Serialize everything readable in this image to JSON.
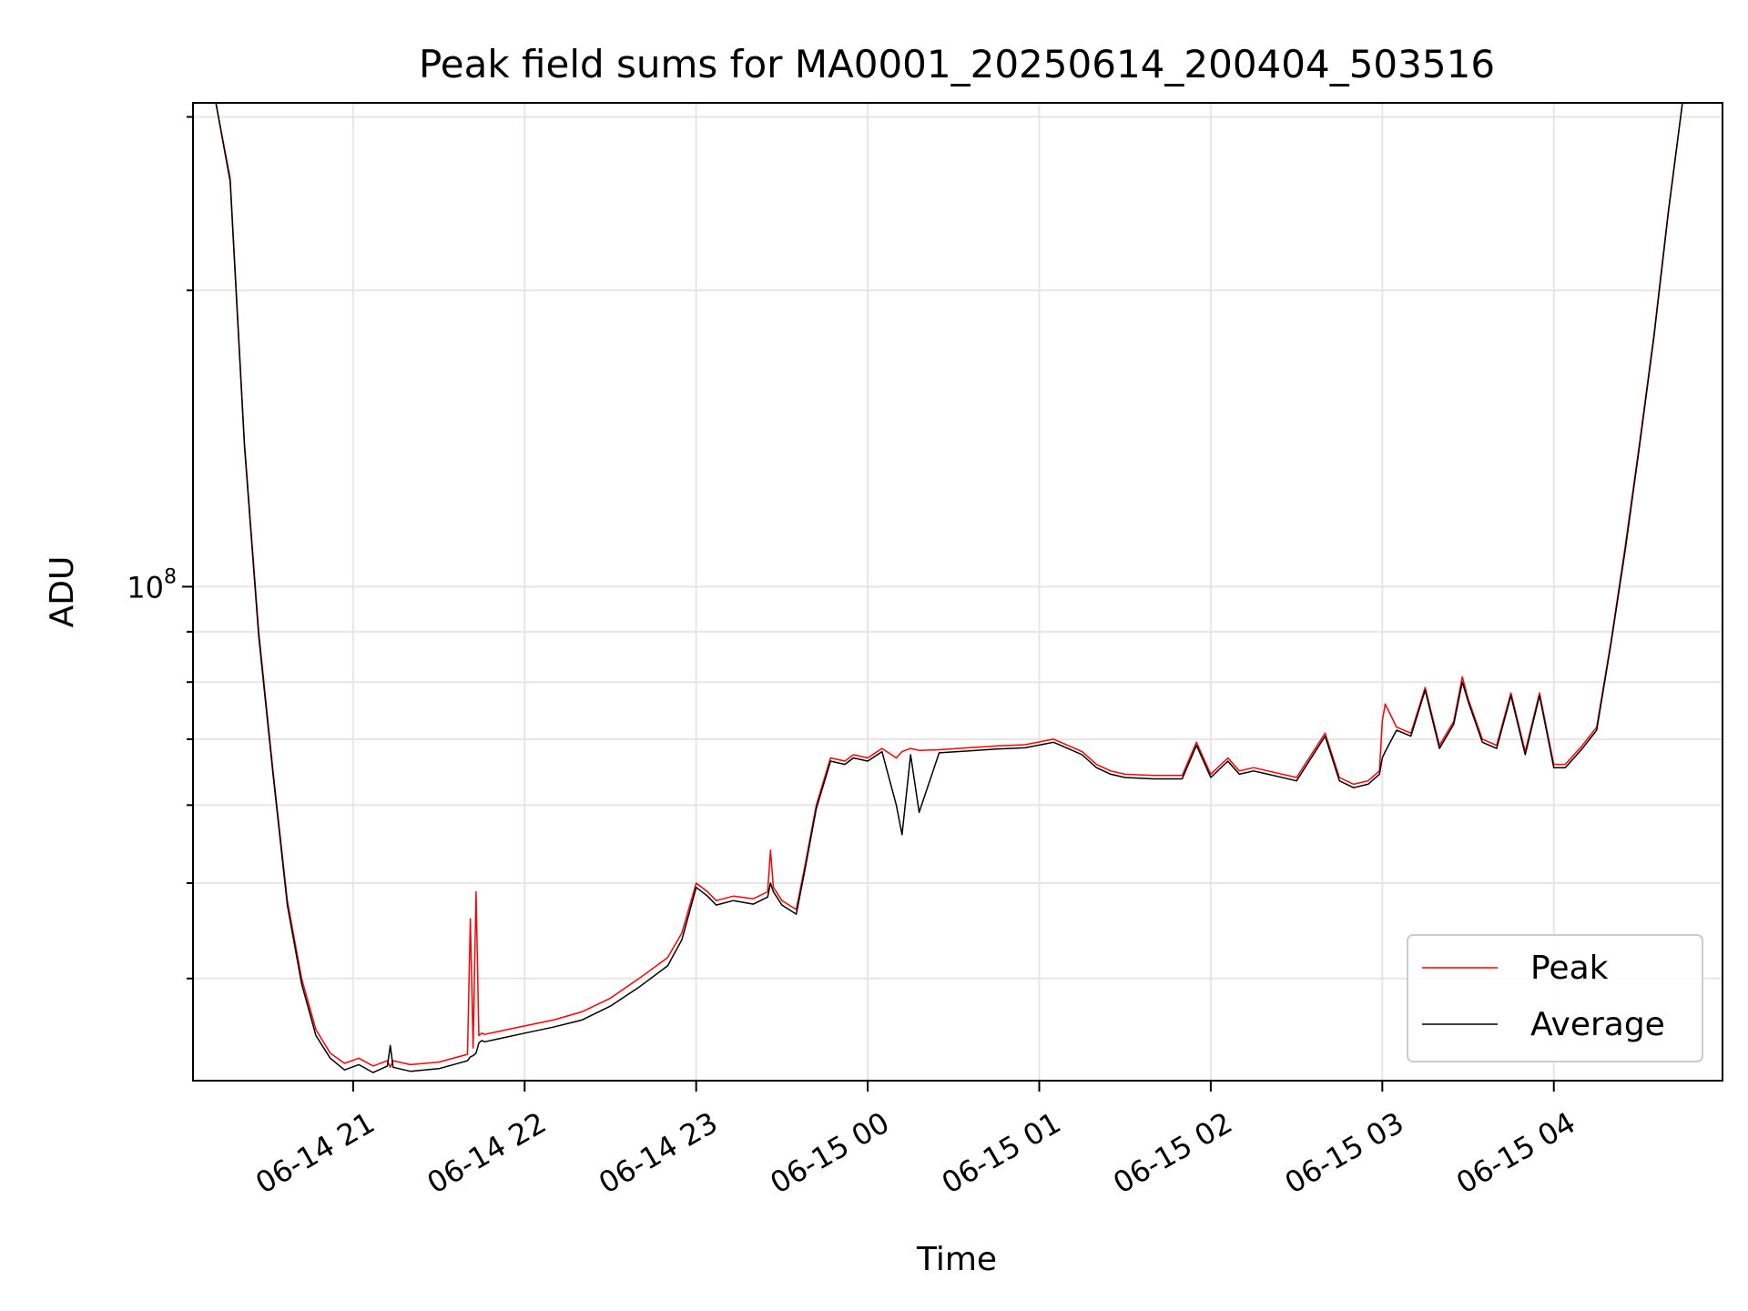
{
  "chart_data": {
    "type": "line",
    "title": "Peak field sums for MA0001_20250614_200404_503516",
    "xlabel": "Time",
    "ylabel": "ADU",
    "yscale": "log",
    "grid": true,
    "legend_position": "lower-right",
    "x_unit": "hours",
    "xlim": [
      "06-14 20:04",
      "06-15 04:59"
    ],
    "ylim": [
      31500000,
      310000000
    ],
    "x_ticks": [
      {
        "label": "06-14 21",
        "value": "06-14 21:00"
      },
      {
        "label": "06-14 22",
        "value": "06-14 22:00"
      },
      {
        "label": "06-14 23",
        "value": "06-14 23:00"
      },
      {
        "label": "06-15 00",
        "value": "06-15 00:00"
      },
      {
        "label": "06-15 01",
        "value": "06-15 01:00"
      },
      {
        "label": "06-15 02",
        "value": "06-15 02:00"
      },
      {
        "label": "06-15 03",
        "value": "06-15 03:00"
      },
      {
        "label": "06-15 04",
        "value": "06-15 04:00"
      }
    ],
    "y_major_ticks": [
      {
        "label": "10",
        "exp": "8",
        "value": 100000000
      }
    ],
    "y_minor_ticks": [
      40000000,
      50000000,
      60000000,
      70000000,
      80000000,
      90000000,
      200000000,
      300000000
    ],
    "series": [
      {
        "name": "Peak",
        "color": "#ff0000",
        "x": [
          "06-14 20:04",
          "06-14 20:12",
          "06-14 20:17",
          "06-14 20:22",
          "06-14 20:27",
          "06-14 20:32",
          "06-14 20:37",
          "06-14 20:42",
          "06-14 20:47",
          "06-14 20:52",
          "06-14 20:57",
          "06-14 21:02",
          "06-14 21:07",
          "06-14 21:12",
          "06-14 21:13",
          "06-14 21:14",
          "06-14 21:20",
          "06-14 21:30",
          "06-14 21:40",
          "06-14 21:41",
          "06-14 21:42",
          "06-14 21:43",
          "06-14 21:44",
          "06-14 21:45",
          "06-14 21:46",
          "06-14 21:50",
          "06-14 22:00",
          "06-14 22:10",
          "06-14 22:20",
          "06-14 22:30",
          "06-14 22:40",
          "06-14 22:50",
          "06-14 22:55",
          "06-14 23:00",
          "06-14 23:04",
          "06-14 23:07",
          "06-14 23:13",
          "06-14 23:20",
          "06-14 23:25",
          "06-14 23:26",
          "06-14 23:27",
          "06-14 23:30",
          "06-14 23:35",
          "06-14 23:38",
          "06-14 23:42",
          "06-14 23:47",
          "06-14 23:52",
          "06-14 23:55",
          "06-15 00:00",
          "06-15 00:05",
          "06-15 00:10",
          "06-15 00:12",
          "06-15 00:15",
          "06-15 00:18",
          "06-15 00:25",
          "06-15 00:35",
          "06-15 00:45",
          "06-15 00:55",
          "06-15 01:05",
          "06-15 01:10",
          "06-15 01:15",
          "06-15 01:20",
          "06-15 01:25",
          "06-15 01:30",
          "06-15 01:40",
          "06-15 01:50",
          "06-15 01:55",
          "06-15 02:00",
          "06-15 02:06",
          "06-15 02:10",
          "06-15 02:15",
          "06-15 02:20",
          "06-15 02:30",
          "06-15 02:40",
          "06-15 02:45",
          "06-15 02:50",
          "06-15 02:55",
          "06-15 02:59",
          "06-15 03:00",
          "06-15 03:01",
          "06-15 03:05",
          "06-15 03:10",
          "06-15 03:15",
          "06-15 03:20",
          "06-15 03:25",
          "06-15 03:28",
          "06-15 03:30",
          "06-15 03:35",
          "06-15 03:40",
          "06-15 03:45",
          "06-15 03:50",
          "06-15 03:55",
          "06-15 04:00",
          "06-15 04:04",
          "06-15 04:10",
          "06-15 04:15",
          "06-15 04:20",
          "06-15 04:25",
          "06-15 04:30",
          "06-15 04:35",
          "06-15 04:40",
          "06-15 04:45",
          "06-15 04:50",
          "06-15 04:52",
          "06-15 04:59"
        ],
        "y": [
          310000000,
          310000000,
          260000000,
          140000000,
          90000000,
          65000000,
          48000000,
          40000000,
          35500000,
          33600000,
          32800000,
          33200000,
          32600000,
          33000000,
          32500000,
          33000000,
          32700000,
          32900000,
          33500000,
          46000000,
          34000000,
          49000000,
          35000000,
          35200000,
          35100000,
          35300000,
          35800000,
          36300000,
          37000000,
          38200000,
          40000000,
          42000000,
          44500000,
          50000000,
          49000000,
          48000000,
          48500000,
          48200000,
          49000000,
          54000000,
          49500000,
          48000000,
          47000000,
          52000000,
          60000000,
          67000000,
          66500000,
          67500000,
          67000000,
          68500000,
          67000000,
          68000000,
          68500000,
          68200000,
          68300000,
          68600000,
          68900000,
          69100000,
          70000000,
          69000000,
          68000000,
          66000000,
          65000000,
          64500000,
          64300000,
          64300000,
          69500000,
          64500000,
          67000000,
          65000000,
          65500000,
          65000000,
          64000000,
          71000000,
          64000000,
          63000000,
          63500000,
          65000000,
          73000000,
          76000000,
          72000000,
          71000000,
          79000000,
          69000000,
          73000000,
          81000000,
          77000000,
          70000000,
          69000000,
          78000000,
          68000000,
          78000000,
          66000000,
          66000000,
          69000000,
          72000000,
          88000000,
          110000000,
          140000000,
          180000000,
          240000000,
          310000000,
          310000000,
          310000000,
          310000000
        ]
      },
      {
        "name": "Average",
        "color": "#000000",
        "x": [
          "06-14 20:04",
          "06-14 20:12",
          "06-14 20:17",
          "06-14 20:22",
          "06-14 20:27",
          "06-14 20:32",
          "06-14 20:37",
          "06-14 20:42",
          "06-14 20:47",
          "06-14 20:52",
          "06-14 20:57",
          "06-14 21:02",
          "06-14 21:07",
          "06-14 21:12",
          "06-14 21:13",
          "06-14 21:14",
          "06-14 21:20",
          "06-14 21:30",
          "06-14 21:40",
          "06-14 21:41",
          "06-14 21:42",
          "06-14 21:43",
          "06-14 21:44",
          "06-14 21:45",
          "06-14 21:46",
          "06-14 21:50",
          "06-14 22:00",
          "06-14 22:10",
          "06-14 22:20",
          "06-14 22:30",
          "06-14 22:40",
          "06-14 22:50",
          "06-14 22:55",
          "06-14 23:00",
          "06-14 23:04",
          "06-14 23:07",
          "06-14 23:13",
          "06-14 23:20",
          "06-14 23:25",
          "06-14 23:26",
          "06-14 23:27",
          "06-14 23:30",
          "06-14 23:35",
          "06-14 23:38",
          "06-14 23:42",
          "06-14 23:47",
          "06-14 23:52",
          "06-14 23:55",
          "06-15 00:00",
          "06-15 00:05",
          "06-15 00:10",
          "06-15 00:12",
          "06-15 00:15",
          "06-15 00:18",
          "06-15 00:25",
          "06-15 00:35",
          "06-15 00:45",
          "06-15 00:55",
          "06-15 01:05",
          "06-15 01:10",
          "06-15 01:15",
          "06-15 01:20",
          "06-15 01:25",
          "06-15 01:30",
          "06-15 01:40",
          "06-15 01:50",
          "06-15 01:55",
          "06-15 02:00",
          "06-15 02:06",
          "06-15 02:10",
          "06-15 02:15",
          "06-15 02:20",
          "06-15 02:30",
          "06-15 02:40",
          "06-15 02:45",
          "06-15 02:50",
          "06-15 02:55",
          "06-15 02:59",
          "06-15 03:00",
          "06-15 03:01",
          "06-15 03:05",
          "06-15 03:10",
          "06-15 03:15",
          "06-15 03:20",
          "06-15 03:25",
          "06-15 03:28",
          "06-15 03:30",
          "06-15 03:35",
          "06-15 03:40",
          "06-15 03:45",
          "06-15 03:50",
          "06-15 03:55",
          "06-15 04:00",
          "06-15 04:04",
          "06-15 04:10",
          "06-15 04:15",
          "06-15 04:20",
          "06-15 04:25",
          "06-15 04:30",
          "06-15 04:35",
          "06-15 04:40",
          "06-15 04:45",
          "06-15 04:50",
          "06-15 04:52",
          "06-15 04:59"
        ],
        "y": [
          310000000,
          310000000,
          258000000,
          139000000,
          89000000,
          64500000,
          47500000,
          39500000,
          35000000,
          33200000,
          32300000,
          32700000,
          32100000,
          32600000,
          34200000,
          32500000,
          32200000,
          32400000,
          33000000,
          33300000,
          33400000,
          33600000,
          34400000,
          34600000,
          34500000,
          34700000,
          35200000,
          35700000,
          36300000,
          37500000,
          39200000,
          41200000,
          43800000,
          49500000,
          48500000,
          47500000,
          48000000,
          47600000,
          48400000,
          50000000,
          49000000,
          47500000,
          46500000,
          51500000,
          59500000,
          66500000,
          66000000,
          67000000,
          66500000,
          68000000,
          60000000,
          56000000,
          67500000,
          59000000,
          67800000,
          68100000,
          68400000,
          68600000,
          69500000,
          68500000,
          67500000,
          65500000,
          64500000,
          64000000,
          63800000,
          63800000,
          69000000,
          64000000,
          66500000,
          64500000,
          65000000,
          64500000,
          63500000,
          70500000,
          63500000,
          62500000,
          63000000,
          64500000,
          67000000,
          68000000,
          71500000,
          70500000,
          78500000,
          68500000,
          72500000,
          80000000,
          76500000,
          69500000,
          68500000,
          77500000,
          67500000,
          77500000,
          65500000,
          65500000,
          68500000,
          71500000,
          87500000,
          109000000,
          139000000,
          179000000,
          239000000,
          310000000,
          310000000,
          310000000,
          310000000
        ]
      }
    ]
  }
}
